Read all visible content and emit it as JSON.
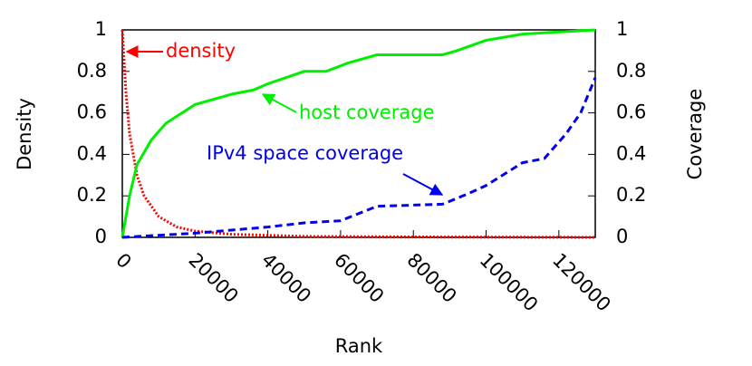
{
  "chart_data": {
    "type": "line",
    "xlabel": "Rank",
    "ylabel": "Density",
    "y2label": "Coverage",
    "xlim": [
      0,
      130000
    ],
    "xticks": [
      0,
      20000,
      40000,
      60000,
      80000,
      100000,
      120000
    ],
    "ylim": [
      0,
      1
    ],
    "yticks": [
      0,
      0.2,
      0.4,
      0.6,
      0.8,
      1
    ],
    "y2lim": [
      0,
      1
    ],
    "y2ticks": [
      0,
      0.2,
      0.4,
      0.6,
      0.8,
      1
    ],
    "series": [
      {
        "name": "density",
        "color": "#ff0000",
        "style": "dotted",
        "x": [
          0,
          1000,
          2000,
          4000,
          6000,
          10000,
          15000,
          20000,
          30000,
          50000,
          80000,
          130000
        ],
        "values": [
          1,
          0.7,
          0.5,
          0.3,
          0.2,
          0.1,
          0.05,
          0.03,
          0.015,
          0.005,
          0.002,
          0
        ]
      },
      {
        "name": "host coverage",
        "color": "#00ee00",
        "style": "solid",
        "axis": "y2",
        "x": [
          0,
          2000,
          4000,
          8000,
          12000,
          20000,
          30000,
          36000,
          40000,
          50000,
          56000,
          62000,
          70000,
          88000,
          92000,
          100000,
          110000,
          120000,
          130000
        ],
        "values": [
          0,
          0.2,
          0.35,
          0.47,
          0.55,
          0.64,
          0.69,
          0.71,
          0.74,
          0.8,
          0.8,
          0.84,
          0.88,
          0.88,
          0.9,
          0.95,
          0.98,
          0.99,
          1
        ]
      },
      {
        "name": "IPv4 space coverage",
        "color": "#0000ee",
        "style": "dashed",
        "axis": "y2",
        "x": [
          0,
          20000,
          40000,
          50000,
          60000,
          70000,
          88000,
          95000,
          100000,
          110000,
          116000,
          122000,
          126000,
          130000
        ],
        "values": [
          0,
          0.02,
          0.05,
          0.07,
          0.08,
          0.15,
          0.16,
          0.21,
          0.25,
          0.36,
          0.38,
          0.5,
          0.6,
          0.77
        ]
      }
    ]
  }
}
